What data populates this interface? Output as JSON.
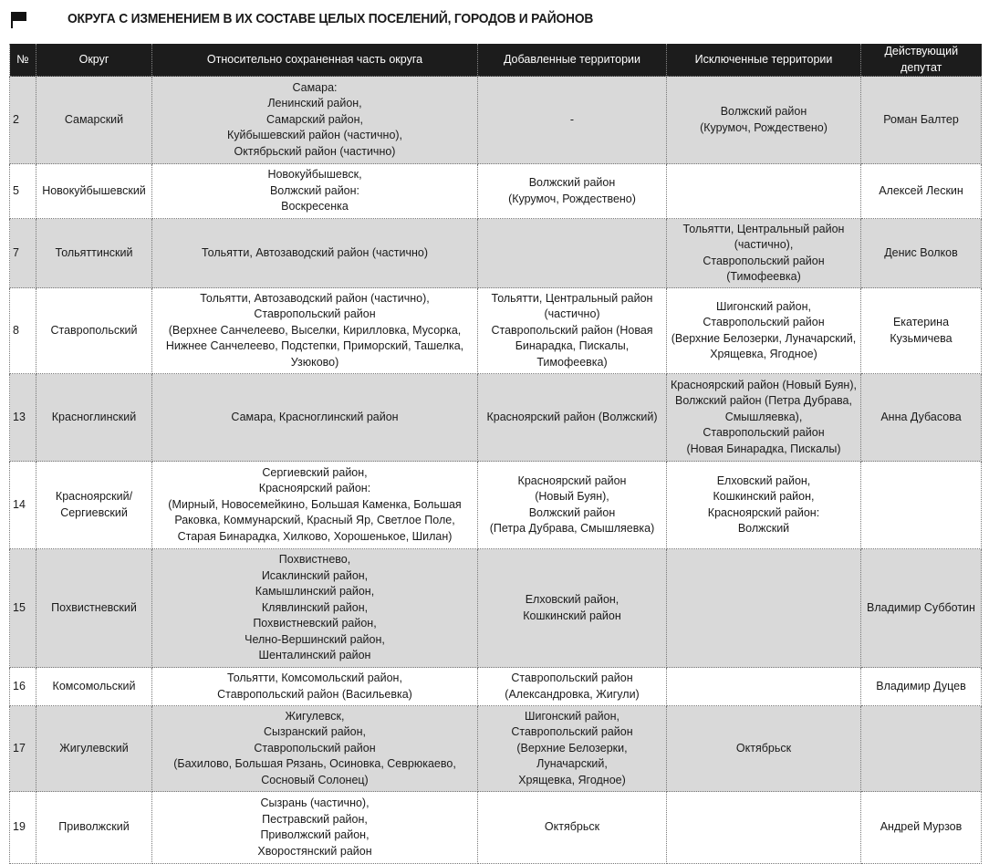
{
  "title": "ОКРУГА С ИЗМЕНЕНИЕМ В ИХ СОСТАВЕ ЦЕЛЫХ ПОСЕЛЕНИЙ, ГОРОДОВ И РАЙОНОВ",
  "headers": [
    "№",
    "Округ",
    "Относительно сохраненная часть округа",
    "Добавленные территории",
    "Исключенные территории",
    "Действующий депутат"
  ],
  "rows": [
    {
      "shade": "gray",
      "num": "2",
      "district": [
        "Самарский"
      ],
      "kept": [
        "Самара:",
        "Ленинский район,",
        "Самарский район,",
        "Куйбышевский район (частично),",
        "Октябрьский район (частично)"
      ],
      "added": [
        "-"
      ],
      "excluded": [
        "Волжский район",
        "(Курумоч, Рождествено)"
      ],
      "deputy": [
        "Роман Балтер"
      ]
    },
    {
      "shade": "white",
      "num": "5",
      "district": [
        "Новокуйбышевский"
      ],
      "kept": [
        "Новокуйбышевск,",
        "Волжский район:",
        "Воскресенка"
      ],
      "added": [
        "Волжский район",
        "(Курумоч, Рождествено)"
      ],
      "excluded": [],
      "deputy": [
        "Алексей Лескин"
      ]
    },
    {
      "shade": "gray",
      "num": "7",
      "district": [
        "Тольяттинский"
      ],
      "kept": [
        "Тольятти, Автозаводский район (частично)"
      ],
      "added": [],
      "excluded": [
        "Тольятти, Центральный район",
        "(частично),",
        "Ставропольский район",
        "(Тимофеевка)"
      ],
      "deputy": [
        "Денис Волков"
      ]
    },
    {
      "shade": "white",
      "num": "8",
      "district": [
        "Ставропольский"
      ],
      "kept": [
        "Тольятти, Автозаводский район (частично),",
        "Ставропольский район",
        "(Верхнее Санчелеево, Выселки, Кирилловка, Мусорка,",
        "Нижнее Санчелеево, Подстепки, Приморский, Ташелка,",
        "Узюково)"
      ],
      "added": [
        "Тольятти, Центральный район",
        "(частично)",
        "Ставропольский район (Новая",
        "Бинарадка, Пискалы, Тимофеевка)"
      ],
      "excluded": [
        "Шигонский район,",
        "Ставропольский район",
        "(Верхние Белозерки, Луначарский,",
        "Хрящевка, Ягодное)"
      ],
      "deputy": [
        "Екатерина",
        "Кузьмичева"
      ]
    },
    {
      "shade": "gray",
      "num": "13",
      "district": [
        "Красноглинский"
      ],
      "kept": [
        "Самара, Красноглинский район"
      ],
      "added": [
        "Красноярский район (Волжский)"
      ],
      "excluded": [
        "Красноярский район (Новый Буян),",
        "Волжский район (Петра Дубрава,",
        "Смышляевка),",
        "Ставропольский район",
        "(Новая Бинарадка, Пискалы)"
      ],
      "deputy": [
        "Анна Дубасова"
      ]
    },
    {
      "shade": "white",
      "num": "14",
      "district": [
        "Красноярский/",
        "Сергиевский"
      ],
      "kept": [
        "Сергиевский район,",
        "Красноярский район:",
        "(Мирный, Новосемейкино, Большая Каменка, Большая",
        "Раковка, Коммунарский, Красный Яр, Светлое Поле,",
        "Старая Бинарадка, Хилково, Хорошенькое, Шилан)"
      ],
      "added": [
        "Красноярский район",
        "(Новый Буян),",
        "Волжский район",
        "(Петра Дубрава, Смышляевка)"
      ],
      "excluded": [
        "Елховский район,",
        "Кошкинский район,",
        "Красноярский район:",
        "Волжский"
      ],
      "deputy": []
    },
    {
      "shade": "gray",
      "num": "15",
      "district": [
        "Похвистневский"
      ],
      "kept": [
        "Похвистнево,",
        "Исаклинский район,",
        "Камышлинский район,",
        "Клявлинский район,",
        "Похвистневский район,",
        "Челно-Вершинский район,",
        "Шенталинский район"
      ],
      "added": [
        "Елховский район,",
        "Кошкинский район"
      ],
      "excluded": [],
      "deputy": [
        "Владимир Субботин"
      ]
    },
    {
      "shade": "white",
      "num": "16",
      "district": [
        "Комсомольский"
      ],
      "kept": [
        "Тольятти, Комсомольский район,",
        "Ставропольский район (Васильевка)"
      ],
      "added": [
        "Ставропольский район",
        "(Александровка, Жигули)"
      ],
      "excluded": [],
      "deputy": [
        "Владимир Дуцев"
      ]
    },
    {
      "shade": "gray",
      "num": "17",
      "district": [
        "Жигулевский"
      ],
      "kept": [
        "Жигулевск,",
        "Сызранский район,",
        "Ставропольский район",
        "(Бахилово, Большая Рязань, Осиновка, Севрюкаево,",
        "Сосновый Солонец)"
      ],
      "added": [
        "Шигонский район,",
        "Ставропольский район",
        "(Верхние Белозерки, Луначарский,",
        "Хрящевка, Ягодное)"
      ],
      "excluded": [
        "Октябрьск"
      ],
      "deputy": []
    },
    {
      "shade": "white",
      "num": "19",
      "district": [
        "Приволжский"
      ],
      "kept": [
        "Сызрань (частично),",
        "Пестравский район,",
        "Приволжский район,",
        "Хворостянский район"
      ],
      "added": [
        "Октябрьск"
      ],
      "excluded": [],
      "deputy": [
        "Андрей Мурзов"
      ]
    }
  ]
}
